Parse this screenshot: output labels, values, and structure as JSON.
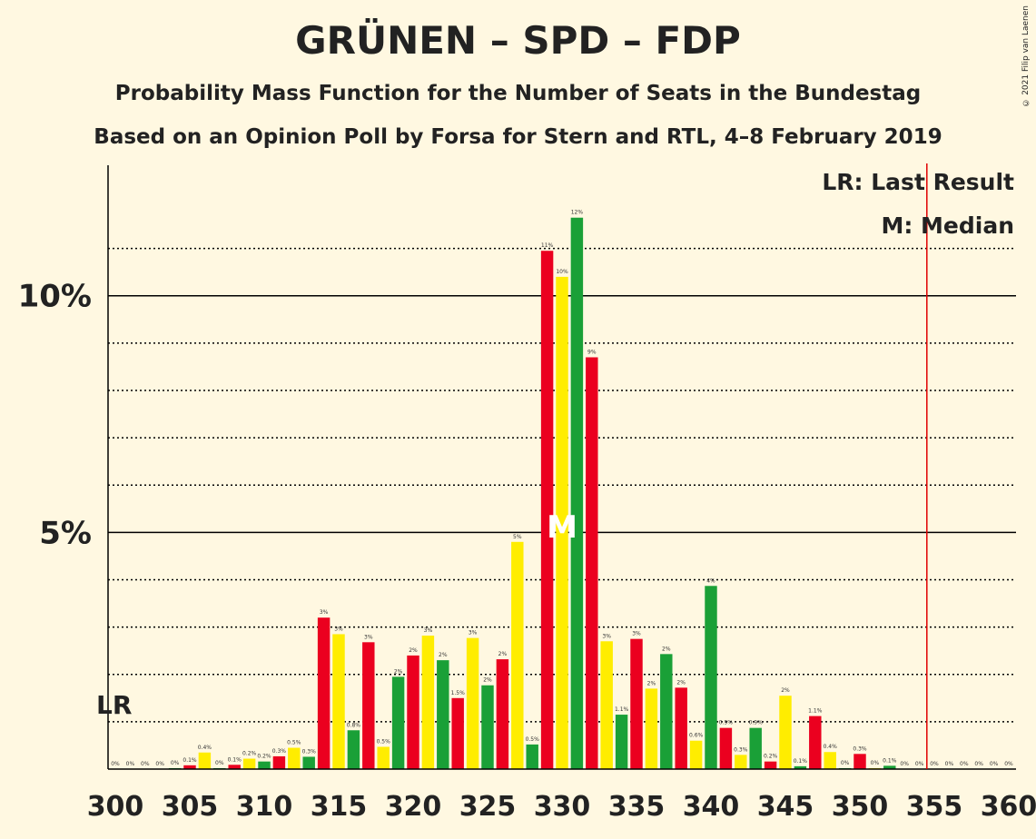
{
  "title": "GRÜNEN – SPD – FDP",
  "subtitle1": "Probability Mass Function for the Number of Seats in the Bundestag",
  "subtitle2": "Based on an Opinion Poll by Forsa for Stern and RTL, 4–8 February 2019",
  "copyright": "© 2021 Filip van Laenen",
  "legend": {
    "lr": "LR: Last Result",
    "m": "M: Median"
  },
  "markers": {
    "lr_label": "LR",
    "median_label": "M"
  },
  "colors": {
    "background": "#FFF8E1",
    "yellow": "#FFED00",
    "green": "#1AA037",
    "red": "#EB001F",
    "lr_line": "#E00000"
  },
  "chart_data": {
    "type": "bar",
    "xlabel": "",
    "ylabel": "",
    "xlim": [
      300,
      360
    ],
    "ylim": [
      0,
      12.7
    ],
    "x_ticks": [
      300,
      305,
      310,
      315,
      320,
      325,
      330,
      335,
      340,
      345,
      350,
      355,
      360
    ],
    "y_ticks": [
      {
        "value": 5,
        "label": "5%"
      },
      {
        "value": 10,
        "label": "10%"
      }
    ],
    "last_result": 355,
    "median": 330,
    "bar_colors": [
      "yellow",
      "green",
      "red"
    ],
    "seats": [
      300,
      301,
      302,
      303,
      304,
      305,
      306,
      307,
      308,
      309,
      310,
      311,
      312,
      313,
      314,
      315,
      316,
      317,
      318,
      319,
      320,
      321,
      322,
      323,
      324,
      325,
      326,
      327,
      328,
      329,
      330,
      331,
      332,
      333,
      334,
      335,
      336,
      337,
      338,
      339,
      340,
      341,
      342,
      343,
      344,
      345,
      346,
      347,
      348,
      349,
      350,
      351,
      352,
      353,
      354,
      355,
      356,
      357,
      358,
      359,
      360
    ],
    "values": [
      0,
      0,
      0,
      0,
      0.02,
      0.08,
      0.35,
      0.02,
      0.09,
      0.22,
      0.16,
      0.27,
      0.45,
      0.26,
      3.2,
      2.85,
      0.82,
      2.68,
      0.47,
      1.95,
      2.4,
      2.82,
      2.3,
      1.5,
      2.77,
      1.77,
      2.32,
      4.8,
      0.52,
      10.95,
      10.4,
      11.65,
      8.7,
      2.7,
      1.15,
      2.75,
      1.7,
      2.43,
      1.72,
      0.6,
      3.87,
      0.87,
      0.3,
      0.87,
      0.16,
      1.55,
      0.06,
      1.12,
      0.36,
      0.02,
      0.32,
      0.02,
      0.07,
      0,
      0,
      0,
      0,
      0,
      0,
      0,
      0
    ],
    "labels": [
      "0%",
      "0%",
      "0%",
      "0%",
      "0%",
      "0.1%",
      "0.4%",
      "0%",
      "0.1%",
      "0.2%",
      "0.2%",
      "0.3%",
      "0.5%",
      "0.3%",
      "3%",
      "3%",
      "0.8%",
      "3%",
      "0.5%",
      "2%",
      "2%",
      "3%",
      "2%",
      "1.5%",
      "3%",
      "2%",
      "2%",
      "5%",
      "0.5%",
      "11%",
      "10%",
      "12%",
      "9%",
      "3%",
      "1.1%",
      "3%",
      "2%",
      "2%",
      "2%",
      "0.6%",
      "4%",
      "0.9%",
      "0.3%",
      "0.9%",
      "0.2%",
      "2%",
      "0.1%",
      "1.1%",
      "0.4%",
      "0%",
      "0.3%",
      "0%",
      "0.1%",
      "0%",
      "0%",
      "0%",
      "0%",
      "0%",
      "0%",
      "0%",
      "0%"
    ]
  }
}
